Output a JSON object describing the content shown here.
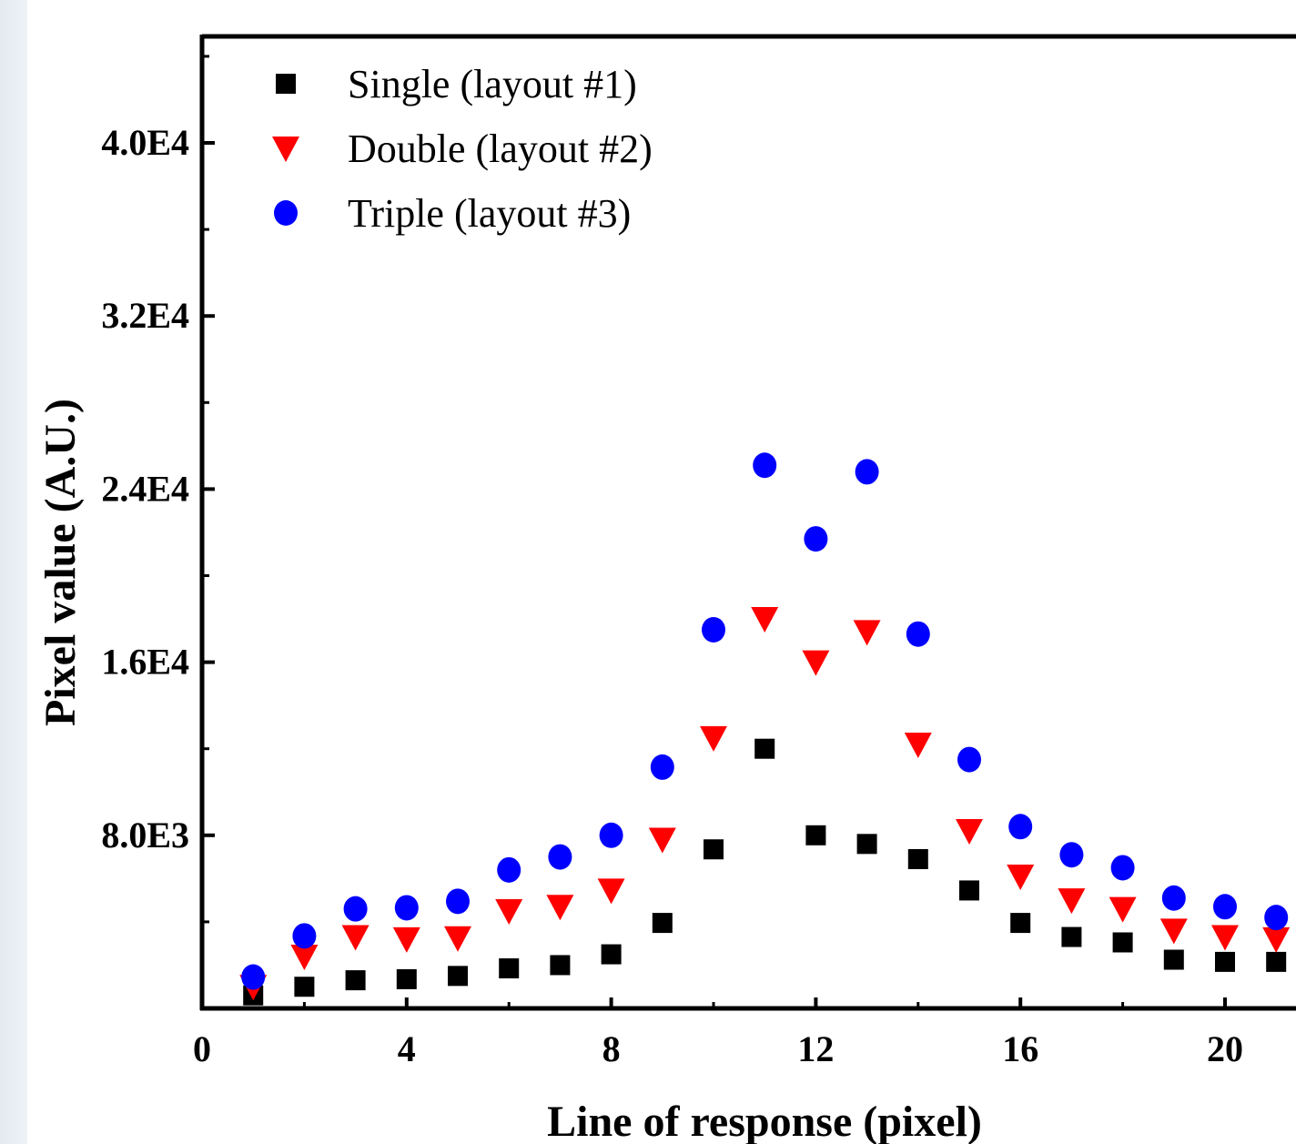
{
  "chart_data": {
    "type": "scatter",
    "xlabel": "Line of response (pixel)",
    "ylabel": "Pixel value (A.U.)",
    "xlim": [
      0,
      21.5
    ],
    "ylim": [
      0,
      45000
    ],
    "x_ticks": [
      0,
      4,
      8,
      12,
      16,
      20
    ],
    "x_tick_labels": [
      "0",
      "4",
      "8",
      "12",
      "16",
      "20"
    ],
    "y_ticks": [
      8000,
      16000,
      24000,
      32000,
      40000
    ],
    "y_tick_labels": [
      "8.0E3",
      "1.6E4",
      "2.4E4",
      "3.2E4",
      "4.0E4"
    ],
    "legend_position": "top-left",
    "grid": false,
    "x": [
      1,
      2,
      3,
      4,
      5,
      6,
      7,
      8,
      9,
      10,
      11,
      12,
      13,
      14,
      15,
      16,
      17,
      18,
      19,
      20,
      21
    ],
    "series": [
      {
        "name": "Single (layout #1)",
        "marker": "square",
        "color": "#000000",
        "values": [
          600,
          1000,
          1300,
          1350,
          1500,
          1850,
          2000,
          2500,
          3950,
          7350,
          12000,
          8000,
          7600,
          6900,
          5450,
          3950,
          3300,
          3050,
          2250,
          2150,
          2150
        ]
      },
      {
        "name": "Double (layout #2)",
        "marker": "triangle-down",
        "color": "#ff0000",
        "values": [
          1000,
          2400,
          3300,
          3200,
          3250,
          4500,
          4700,
          5450,
          7800,
          12500,
          18000,
          16000,
          17400,
          12200,
          8200,
          6100,
          5000,
          4600,
          3600,
          3300,
          3200
        ]
      },
      {
        "name": "Triple (layout #3)",
        "marker": "circle",
        "color": "#0000ff",
        "values": [
          1450,
          3350,
          4600,
          4650,
          4950,
          6400,
          7000,
          8000,
          11150,
          17500,
          25100,
          21700,
          24800,
          17300,
          11500,
          8400,
          7100,
          6500,
          5100,
          4700,
          4200
        ]
      }
    ]
  }
}
